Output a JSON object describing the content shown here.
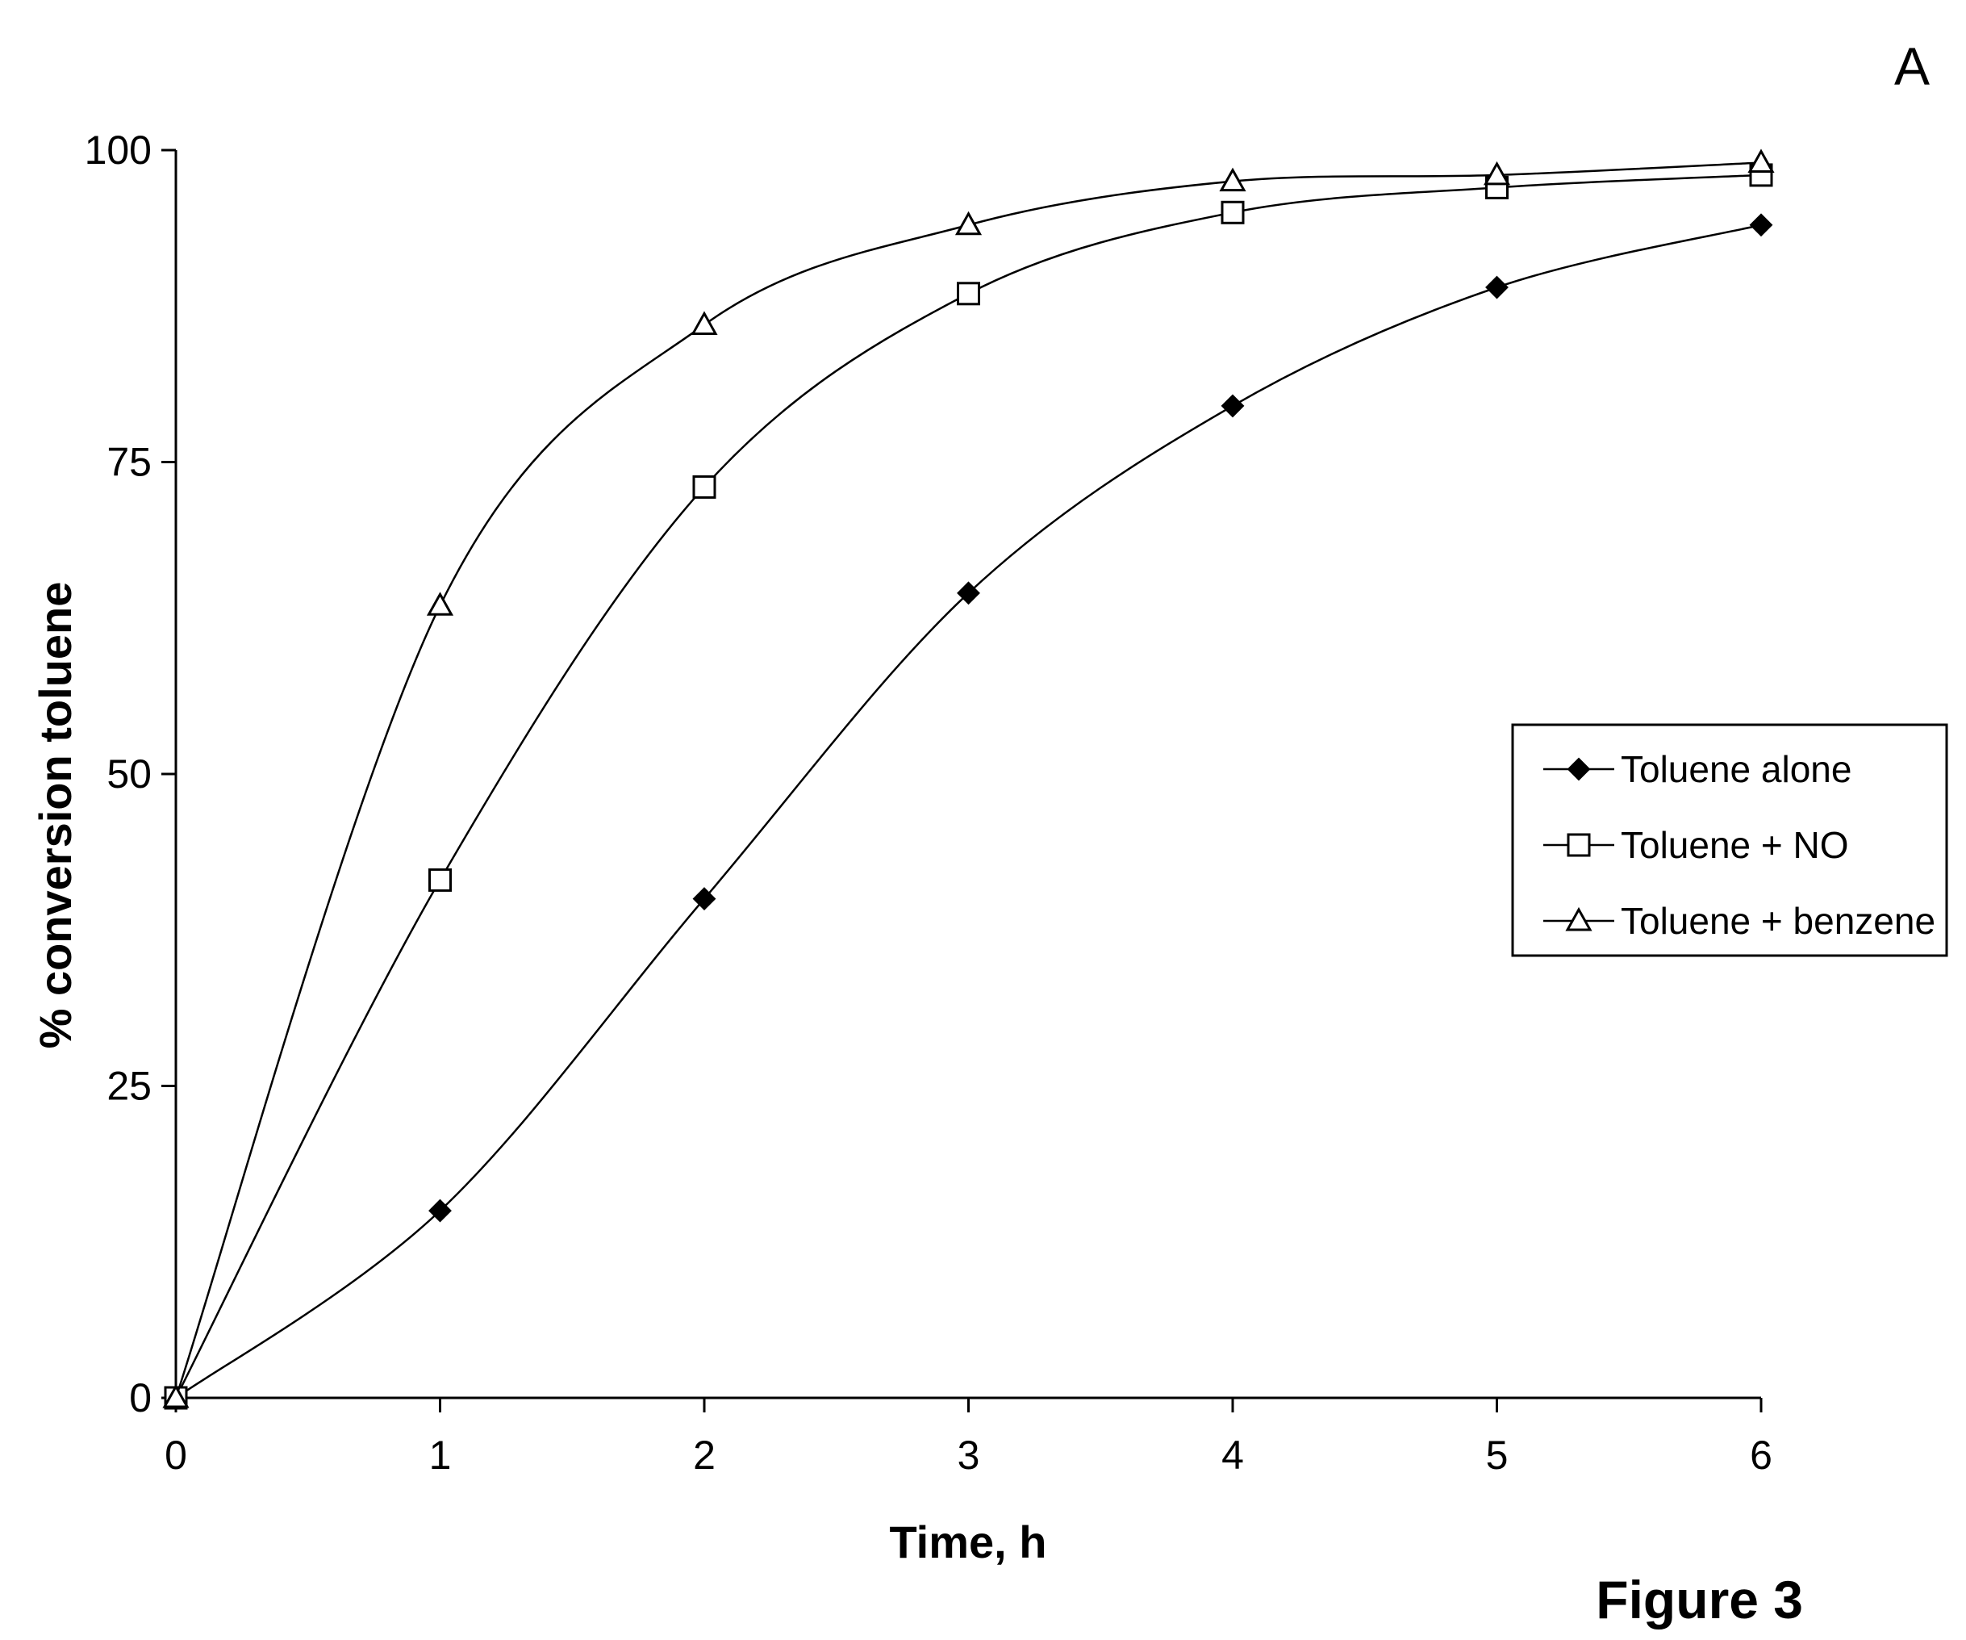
{
  "chart_data": {
    "type": "line",
    "panel_label": "A",
    "figure_label": "Figure 3",
    "xlabel": "Time, h",
    "ylabel": "% conversion toluene",
    "xlim": [
      0,
      6
    ],
    "ylim": [
      0,
      100
    ],
    "x_ticks": [
      0,
      1,
      2,
      3,
      4,
      5,
      6
    ],
    "y_ticks": [
      0,
      25,
      50,
      75,
      100
    ],
    "grid": false,
    "legend_position": "right",
    "x": [
      0,
      1,
      2,
      3,
      4,
      5,
      6
    ],
    "series": [
      {
        "name": "Toluene alone",
        "marker": "diamond-filled",
        "values": [
          0,
          15,
          40,
          64.5,
          79.5,
          89,
          94
        ]
      },
      {
        "name": "Toluene + NO",
        "marker": "square-open",
        "values": [
          0,
          41.5,
          73,
          88.5,
          95,
          97,
          98
        ]
      },
      {
        "name": "Toluene + benzene",
        "marker": "triangle-open",
        "values": [
          0,
          63.5,
          86,
          94,
          97.5,
          98,
          99
        ]
      }
    ]
  }
}
